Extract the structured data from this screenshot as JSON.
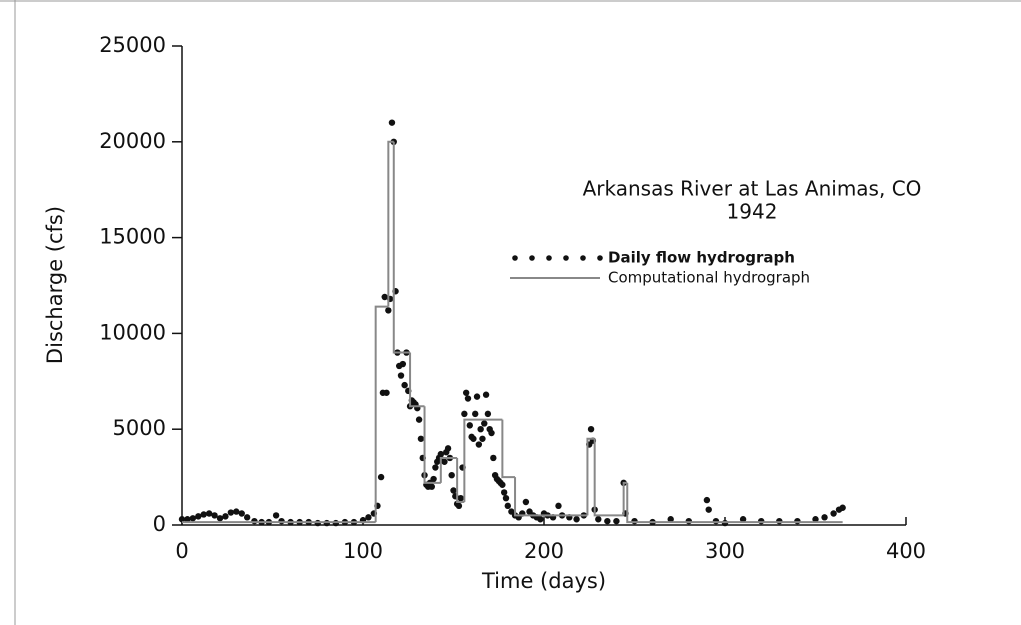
{
  "chart_data": {
    "type": "scatter",
    "title": "Arkansas River at Las Animas, CO",
    "subtitle": "1942",
    "x_label": "Time (days)",
    "y_label": "Discharge (cfs)",
    "xlim": [
      0,
      400
    ],
    "xticks": [
      0,
      100,
      200,
      300,
      400
    ],
    "ylim": [
      0,
      25000
    ],
    "yticks": [
      0,
      5000,
      10000,
      15000,
      20000,
      25000
    ],
    "grid": false,
    "legend": "upper right",
    "series": [
      {
        "name": "Daily flow hydrograph",
        "color": "#111111",
        "style": "markers",
        "x": [
          0,
          3,
          6,
          9,
          12,
          15,
          18,
          21,
          24,
          27,
          30,
          33,
          36,
          40,
          44,
          48,
          52,
          55,
          60,
          65,
          70,
          75,
          80,
          85,
          90,
          95,
          100,
          103,
          106,
          108,
          110,
          111,
          112,
          113,
          114,
          115,
          116,
          117,
          118,
          119,
          120,
          121,
          122,
          123,
          124,
          125,
          126,
          127,
          128,
          129,
          130,
          131,
          132,
          133,
          134,
          135,
          136,
          137,
          138,
          139,
          140,
          141,
          142,
          143,
          144,
          145,
          146,
          147,
          148,
          149,
          150,
          151,
          152,
          153,
          154,
          155,
          156,
          157,
          158,
          159,
          160,
          161,
          162,
          163,
          164,
          165,
          166,
          167,
          168,
          169,
          170,
          171,
          172,
          173,
          174,
          175,
          176,
          177,
          178,
          179,
          180,
          182,
          184,
          186,
          188,
          190,
          192,
          194,
          196,
          198,
          200,
          202,
          205,
          208,
          210,
          214,
          218,
          222,
          225,
          226,
          227,
          228,
          230,
          235,
          240,
          244,
          245,
          250,
          260,
          270,
          280,
          290,
          291,
          295,
          300,
          310,
          320,
          330,
          340,
          350,
          355,
          360,
          363,
          365
        ],
        "values": [
          300,
          300,
          350,
          450,
          550,
          600,
          500,
          350,
          450,
          650,
          700,
          600,
          400,
          200,
          150,
          150,
          500,
          200,
          150,
          150,
          150,
          100,
          100,
          100,
          150,
          150,
          250,
          400,
          600,
          1000,
          2500,
          6900,
          11900,
          6900,
          11200,
          11800,
          21000,
          20000,
          12200,
          9000,
          8300,
          7800,
          8400,
          7300,
          9000,
          7000,
          6200,
          6500,
          6400,
          6300,
          6100,
          5500,
          4500,
          3500,
          2600,
          2100,
          2000,
          2200,
          2000,
          2400,
          3000,
          3300,
          3500,
          3700,
          3400,
          3300,
          3800,
          4000,
          3500,
          2600,
          1800,
          1500,
          1100,
          1000,
          1400,
          3000,
          5800,
          6900,
          6600,
          5200,
          4600,
          4500,
          5800,
          6700,
          4200,
          5000,
          4500,
          5300,
          6800,
          5800,
          5000,
          4800,
          3500,
          2600,
          2400,
          2300,
          2200,
          2100,
          1700,
          1400,
          1000,
          700,
          500,
          400,
          600,
          1200,
          700,
          500,
          400,
          300,
          600,
          500,
          400,
          1000,
          500,
          400,
          300,
          500,
          4200,
          5000,
          4400,
          800,
          300,
          200,
          200,
          2200,
          600,
          200,
          150,
          300,
          200,
          1300,
          800,
          200,
          100,
          300,
          200,
          200,
          200,
          300,
          400,
          600,
          800,
          900
        ]
      },
      {
        "name": "Computational hydrograph",
        "color": "#888888",
        "style": "step",
        "x": [
          0,
          107,
          114,
          117,
          126,
          134,
          143,
          152,
          156,
          177,
          184,
          224,
          228,
          244,
          246,
          365
        ],
        "values": [
          150,
          11400,
          20000,
          9000,
          6200,
          2200,
          3500,
          1200,
          5500,
          2500,
          500,
          4500,
          500,
          2200,
          150,
          150
        ]
      }
    ]
  }
}
